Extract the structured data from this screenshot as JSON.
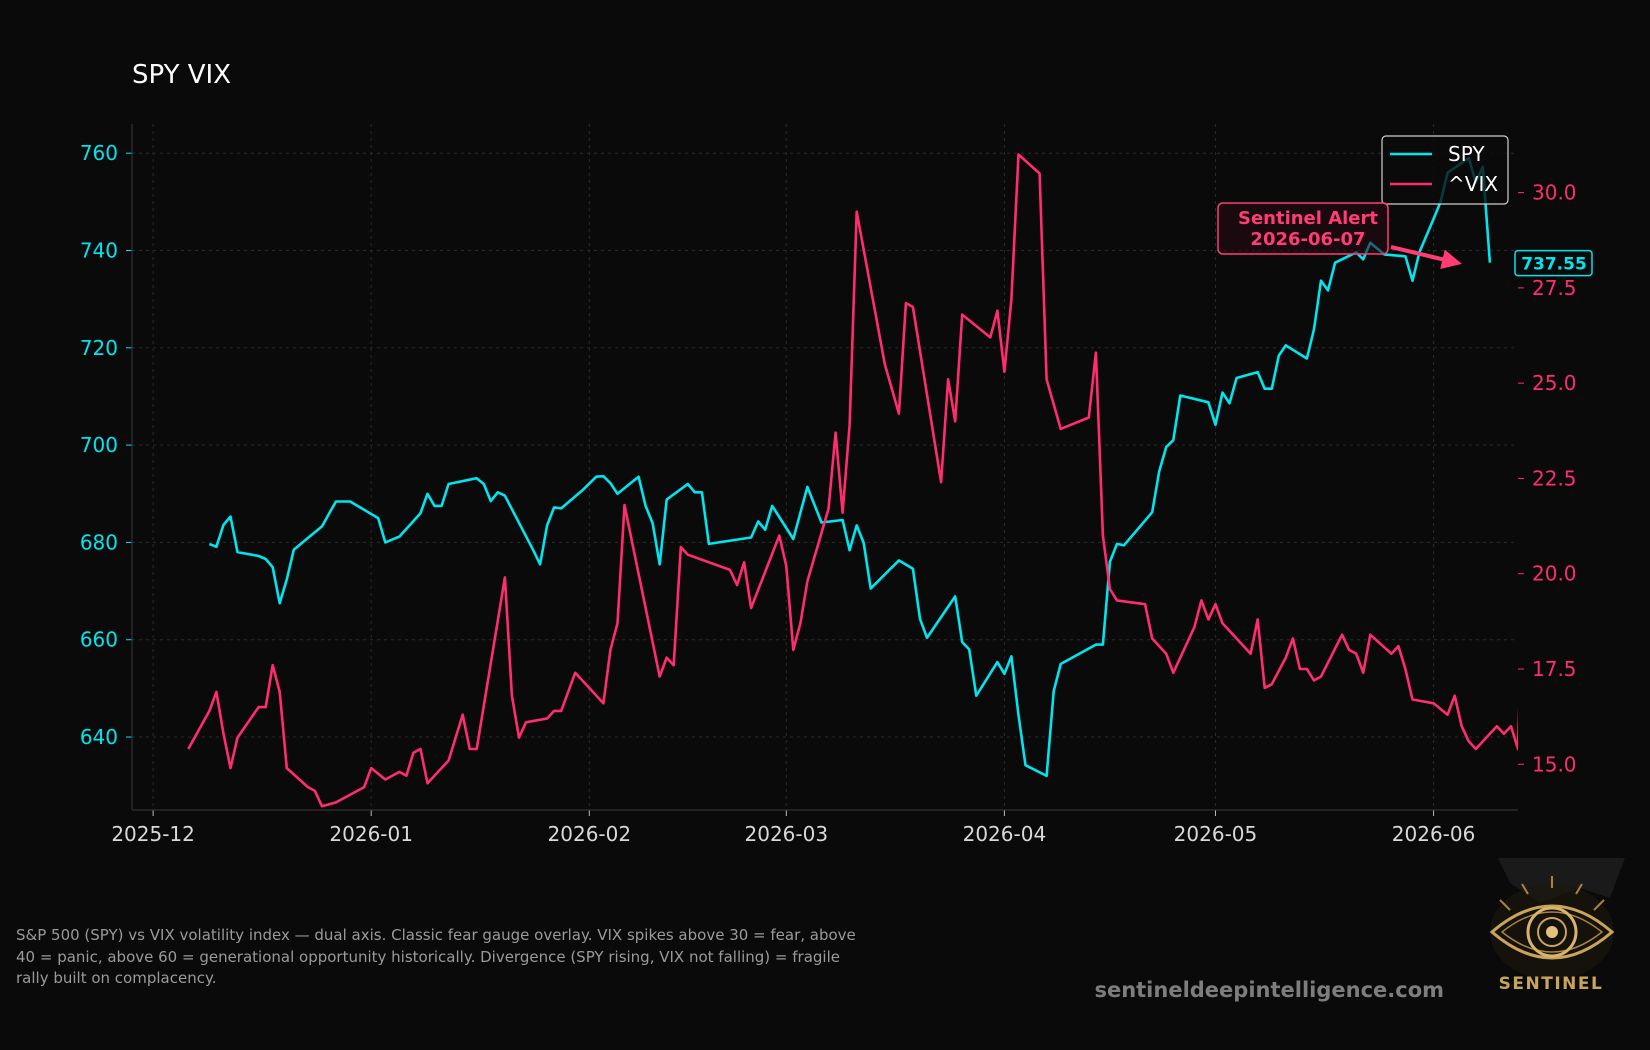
{
  "chart_data": {
    "type": "line",
    "title": "SPY VIX",
    "x_type": "date",
    "x_ticks": [
      "2025-12",
      "2026-01",
      "2026-02",
      "2026-03",
      "2026-04",
      "2026-05",
      "2026-06"
    ],
    "xlim": [
      "2025-11-28",
      "2026-06-13"
    ],
    "y_left": {
      "ticks": [
        640,
        660,
        680,
        700,
        720,
        740,
        760
      ],
      "range": [
        625,
        766
      ],
      "color": "#00e5ee"
    },
    "y_right": {
      "ticks": [
        "15.0",
        "17.5",
        "20.0",
        "22.5",
        "25.0",
        "27.5",
        "30.0"
      ],
      "range": [
        13.8,
        31.8
      ],
      "color": "#ff2d6e"
    },
    "grid": true,
    "legend_position": "top-right",
    "series": [
      {
        "name": "SPY",
        "axis": "left",
        "color": "#00e5ee",
        "points": [
          [
            "2025-12-09",
            679.7
          ],
          [
            "2025-12-10",
            679.1
          ],
          [
            "2025-12-11",
            683.6
          ],
          [
            "2025-12-12",
            685.3
          ],
          [
            "2025-12-13",
            678.0
          ],
          [
            "2025-12-16",
            677.2
          ],
          [
            "2025-12-17",
            676.6
          ],
          [
            "2025-12-18",
            674.9
          ],
          [
            "2025-12-19",
            667.5
          ],
          [
            "2025-12-20",
            672.4
          ],
          [
            "2025-12-21",
            678.5
          ],
          [
            "2025-12-23",
            680.9
          ],
          [
            "2025-12-25",
            683.3
          ],
          [
            "2025-12-26",
            685.9
          ],
          [
            "2025-12-27",
            688.4
          ],
          [
            "2025-12-29",
            688.4
          ],
          [
            "2026-01-02",
            685.0
          ],
          [
            "2026-01-03",
            680.0
          ],
          [
            "2026-01-05",
            681.2
          ],
          [
            "2026-01-08",
            686.0
          ],
          [
            "2026-01-09",
            690.0
          ],
          [
            "2026-01-10",
            687.5
          ],
          [
            "2026-01-11",
            687.5
          ],
          [
            "2026-01-12",
            692.0
          ],
          [
            "2026-01-16",
            693.2
          ],
          [
            "2026-01-17",
            692.0
          ],
          [
            "2026-01-18",
            688.5
          ],
          [
            "2026-01-19",
            690.3
          ],
          [
            "2026-01-20",
            689.6
          ],
          [
            "2026-01-24",
            678.5
          ],
          [
            "2026-01-25",
            675.5
          ],
          [
            "2026-01-26",
            683.5
          ],
          [
            "2026-01-27",
            687.2
          ],
          [
            "2026-01-28",
            687.0
          ],
          [
            "2026-01-31",
            690.7
          ],
          [
            "2026-02-02",
            693.5
          ],
          [
            "2026-02-03",
            693.6
          ],
          [
            "2026-02-04",
            692.2
          ],
          [
            "2026-02-05",
            690.0
          ],
          [
            "2026-02-08",
            693.5
          ],
          [
            "2026-02-09",
            687.5
          ],
          [
            "2026-02-10",
            684.0
          ],
          [
            "2026-02-11",
            675.5
          ],
          [
            "2026-02-12",
            688.8
          ],
          [
            "2026-02-15",
            692.0
          ],
          [
            "2026-02-16",
            690.3
          ],
          [
            "2026-02-17",
            690.3
          ],
          [
            "2026-02-18",
            679.7
          ],
          [
            "2026-02-24",
            681.0
          ],
          [
            "2026-02-25",
            684.3
          ],
          [
            "2026-02-26",
            682.6
          ],
          [
            "2026-02-27",
            687.5
          ],
          [
            "2026-03-02",
            680.7
          ],
          [
            "2026-03-04",
            691.4
          ],
          [
            "2026-03-06",
            684.1
          ],
          [
            "2026-03-09",
            684.6
          ],
          [
            "2026-03-10",
            678.4
          ],
          [
            "2026-03-11",
            683.5
          ],
          [
            "2026-03-12",
            679.9
          ],
          [
            "2026-03-13",
            670.5
          ],
          [
            "2026-03-17",
            676.3
          ],
          [
            "2026-03-19",
            674.6
          ],
          [
            "2026-03-20",
            664.3
          ],
          [
            "2026-03-21",
            660.4
          ],
          [
            "2026-03-25",
            668.9
          ],
          [
            "2026-03-26",
            659.5
          ],
          [
            "2026-03-27",
            658.0
          ],
          [
            "2026-03-28",
            648.5
          ],
          [
            "2026-03-31",
            655.4
          ],
          [
            "2026-04-01",
            653.0
          ],
          [
            "2026-04-02",
            656.6
          ],
          [
            "2026-04-03",
            644.5
          ],
          [
            "2026-04-04",
            634.2
          ],
          [
            "2026-04-07",
            632.0
          ],
          [
            "2026-04-08",
            649.4
          ],
          [
            "2026-04-09",
            655.0
          ],
          [
            "2026-04-14",
            659.0
          ],
          [
            "2026-04-15",
            659.0
          ],
          [
            "2026-04-16",
            676.0
          ],
          [
            "2026-04-17",
            679.7
          ],
          [
            "2026-04-18",
            679.4
          ],
          [
            "2026-04-22",
            686.2
          ],
          [
            "2026-04-23",
            694.6
          ],
          [
            "2026-04-24",
            699.6
          ],
          [
            "2026-04-25",
            701.0
          ],
          [
            "2026-04-26",
            710.2
          ],
          [
            "2026-04-30",
            708.8
          ],
          [
            "2026-05-01",
            704.2
          ],
          [
            "2026-05-02",
            710.8
          ],
          [
            "2026-05-03",
            708.6
          ],
          [
            "2026-05-04",
            713.8
          ],
          [
            "2026-05-07",
            715.0
          ],
          [
            "2026-05-08",
            711.6
          ],
          [
            "2026-05-09",
            711.6
          ],
          [
            "2026-05-10",
            718.4
          ],
          [
            "2026-05-11",
            720.5
          ],
          [
            "2026-05-14",
            717.8
          ],
          [
            "2026-05-15",
            723.8
          ],
          [
            "2026-05-16",
            733.8
          ],
          [
            "2026-05-17",
            731.8
          ],
          [
            "2026-05-18",
            737.5
          ],
          [
            "2026-05-21",
            739.6
          ],
          [
            "2026-05-22",
            738.2
          ],
          [
            "2026-05-23",
            741.6
          ],
          [
            "2026-05-25",
            739.2
          ],
          [
            "2026-05-28",
            738.8
          ],
          [
            "2026-05-29",
            733.8
          ],
          [
            "2026-05-30",
            739.7
          ],
          [
            "2026-06-01",
            746.5
          ],
          [
            "2026-06-02",
            750.0
          ],
          [
            "2026-06-03",
            756.0
          ],
          [
            "2026-06-06",
            759.0
          ],
          [
            "2026-06-07",
            754.0
          ],
          [
            "2026-06-08",
            757.2
          ],
          [
            "2026-06-09",
            737.5
          ]
        ]
      },
      {
        "name": "^VIX",
        "axis": "right",
        "color": "#ff2d6e",
        "points": [
          [
            "2025-12-06",
            15.4
          ],
          [
            "2025-12-09",
            16.4
          ],
          [
            "2025-12-10",
            16.9
          ],
          [
            "2025-12-11",
            15.8
          ],
          [
            "2025-12-12",
            14.9
          ],
          [
            "2025-12-13",
            15.7
          ],
          [
            "2025-12-16",
            16.5
          ],
          [
            "2025-12-17",
            16.5
          ],
          [
            "2025-12-18",
            17.6
          ],
          [
            "2025-12-19",
            16.9
          ],
          [
            "2025-12-20",
            14.9
          ],
          [
            "2025-12-23",
            14.4
          ],
          [
            "2025-12-24",
            14.3
          ],
          [
            "2025-12-25",
            13.9
          ],
          [
            "2025-12-27",
            14.0
          ],
          [
            "2025-12-31",
            14.4
          ],
          [
            "2026-01-01",
            14.9
          ],
          [
            "2026-01-03",
            14.6
          ],
          [
            "2026-01-05",
            14.8
          ],
          [
            "2026-01-06",
            14.7
          ],
          [
            "2026-01-07",
            15.3
          ],
          [
            "2026-01-08",
            15.4
          ],
          [
            "2026-01-09",
            14.5
          ],
          [
            "2026-01-12",
            15.1
          ],
          [
            "2026-01-14",
            16.3
          ],
          [
            "2026-01-15",
            15.4
          ],
          [
            "2026-01-16",
            15.4
          ],
          [
            "2026-01-20",
            19.9
          ],
          [
            "2026-01-21",
            16.8
          ],
          [
            "2026-01-22",
            15.7
          ],
          [
            "2026-01-23",
            16.1
          ],
          [
            "2026-01-26",
            16.2
          ],
          [
            "2026-01-27",
            16.4
          ],
          [
            "2026-01-28",
            16.4
          ],
          [
            "2026-01-30",
            17.4
          ],
          [
            "2026-02-03",
            16.6
          ],
          [
            "2026-02-04",
            18.0
          ],
          [
            "2026-02-05",
            18.7
          ],
          [
            "2026-02-06",
            21.8
          ],
          [
            "2026-02-11",
            17.3
          ],
          [
            "2026-02-12",
            17.8
          ],
          [
            "2026-02-13",
            17.6
          ],
          [
            "2026-02-14",
            20.7
          ],
          [
            "2026-02-15",
            20.5
          ],
          [
            "2026-02-21",
            20.1
          ],
          [
            "2026-02-22",
            19.7
          ],
          [
            "2026-02-23",
            20.3
          ],
          [
            "2026-02-24",
            19.1
          ],
          [
            "2026-02-28",
            21.0
          ],
          [
            "2026-03-01",
            20.2
          ],
          [
            "2026-03-02",
            18.0
          ],
          [
            "2026-03-03",
            18.7
          ],
          [
            "2026-03-04",
            19.8
          ],
          [
            "2026-03-07",
            21.7
          ],
          [
            "2026-03-08",
            23.7
          ],
          [
            "2026-03-09",
            21.6
          ],
          [
            "2026-03-10",
            23.9
          ],
          [
            "2026-03-11",
            29.5
          ],
          [
            "2026-03-15",
            25.5
          ],
          [
            "2026-03-17",
            24.2
          ],
          [
            "2026-03-18",
            27.1
          ],
          [
            "2026-03-19",
            27.0
          ],
          [
            "2026-03-23",
            22.4
          ],
          [
            "2026-03-24",
            25.1
          ],
          [
            "2026-03-25",
            24.0
          ],
          [
            "2026-03-26",
            26.8
          ],
          [
            "2026-03-30",
            26.2
          ],
          [
            "2026-03-31",
            26.9
          ],
          [
            "2026-04-01",
            25.3
          ],
          [
            "2026-04-02",
            27.2
          ],
          [
            "2026-04-03",
            31.0
          ],
          [
            "2026-04-06",
            30.5
          ],
          [
            "2026-04-07",
            25.1
          ],
          [
            "2026-04-09",
            23.8
          ],
          [
            "2026-04-13",
            24.1
          ],
          [
            "2026-04-14",
            25.8
          ],
          [
            "2026-04-15",
            21.0
          ],
          [
            "2026-04-16",
            19.6
          ],
          [
            "2026-04-17",
            19.3
          ],
          [
            "2026-04-21",
            19.2
          ],
          [
            "2026-04-22",
            18.3
          ],
          [
            "2026-04-24",
            17.9
          ],
          [
            "2026-04-25",
            17.4
          ],
          [
            "2026-04-28",
            18.6
          ],
          [
            "2026-04-29",
            19.3
          ],
          [
            "2026-04-30",
            18.8
          ],
          [
            "2026-05-01",
            19.2
          ],
          [
            "2026-05-02",
            18.7
          ],
          [
            "2026-05-05",
            18.1
          ],
          [
            "2026-05-06",
            17.9
          ],
          [
            "2026-05-07",
            18.8
          ],
          [
            "2026-05-08",
            17.0
          ],
          [
            "2026-05-09",
            17.1
          ],
          [
            "2026-05-11",
            17.8
          ],
          [
            "2026-05-12",
            18.3
          ],
          [
            "2026-05-13",
            17.5
          ],
          [
            "2026-05-14",
            17.5
          ],
          [
            "2026-05-15",
            17.2
          ],
          [
            "2026-05-16",
            17.3
          ],
          [
            "2026-05-19",
            18.4
          ],
          [
            "2026-05-20",
            18.0
          ],
          [
            "2026-05-21",
            17.9
          ],
          [
            "2026-05-22",
            17.4
          ],
          [
            "2026-05-23",
            18.4
          ],
          [
            "2026-05-26",
            17.9
          ],
          [
            "2026-05-27",
            18.1
          ],
          [
            "2026-05-28",
            17.5
          ],
          [
            "2026-05-29",
            16.7
          ],
          [
            "2026-06-01",
            16.6
          ],
          [
            "2026-06-03",
            16.3
          ],
          [
            "2026-06-04",
            16.8
          ],
          [
            "2026-06-05",
            16.0
          ],
          [
            "2026-06-06",
            15.6
          ],
          [
            "2026-06-07",
            15.4
          ],
          [
            "2026-06-09",
            15.8
          ],
          [
            "2026-06-10",
            16.0
          ],
          [
            "2026-06-11",
            15.8
          ],
          [
            "2026-06-12",
            16.0
          ],
          [
            "2026-06-13",
            15.4
          ],
          [
            "2026-06-14",
            21.5
          ]
        ]
      }
    ],
    "annotation": {
      "label": "Sentinel Alert",
      "date": "2026-06-07",
      "color": "#ff3d74"
    },
    "last_value_label": "737.55"
  },
  "caption": "S&P 500 (SPY) vs VIX volatility index — dual axis. Classic fear gauge overlay. VIX spikes above 30 = fear, above 40 = panic, above 60 = generational opportunity historically. Divergence (SPY rising, VIX not falling) = fragile rally built on complacency.",
  "site": "sentineldeepintelligence.com",
  "logo_text": "SENTINEL"
}
